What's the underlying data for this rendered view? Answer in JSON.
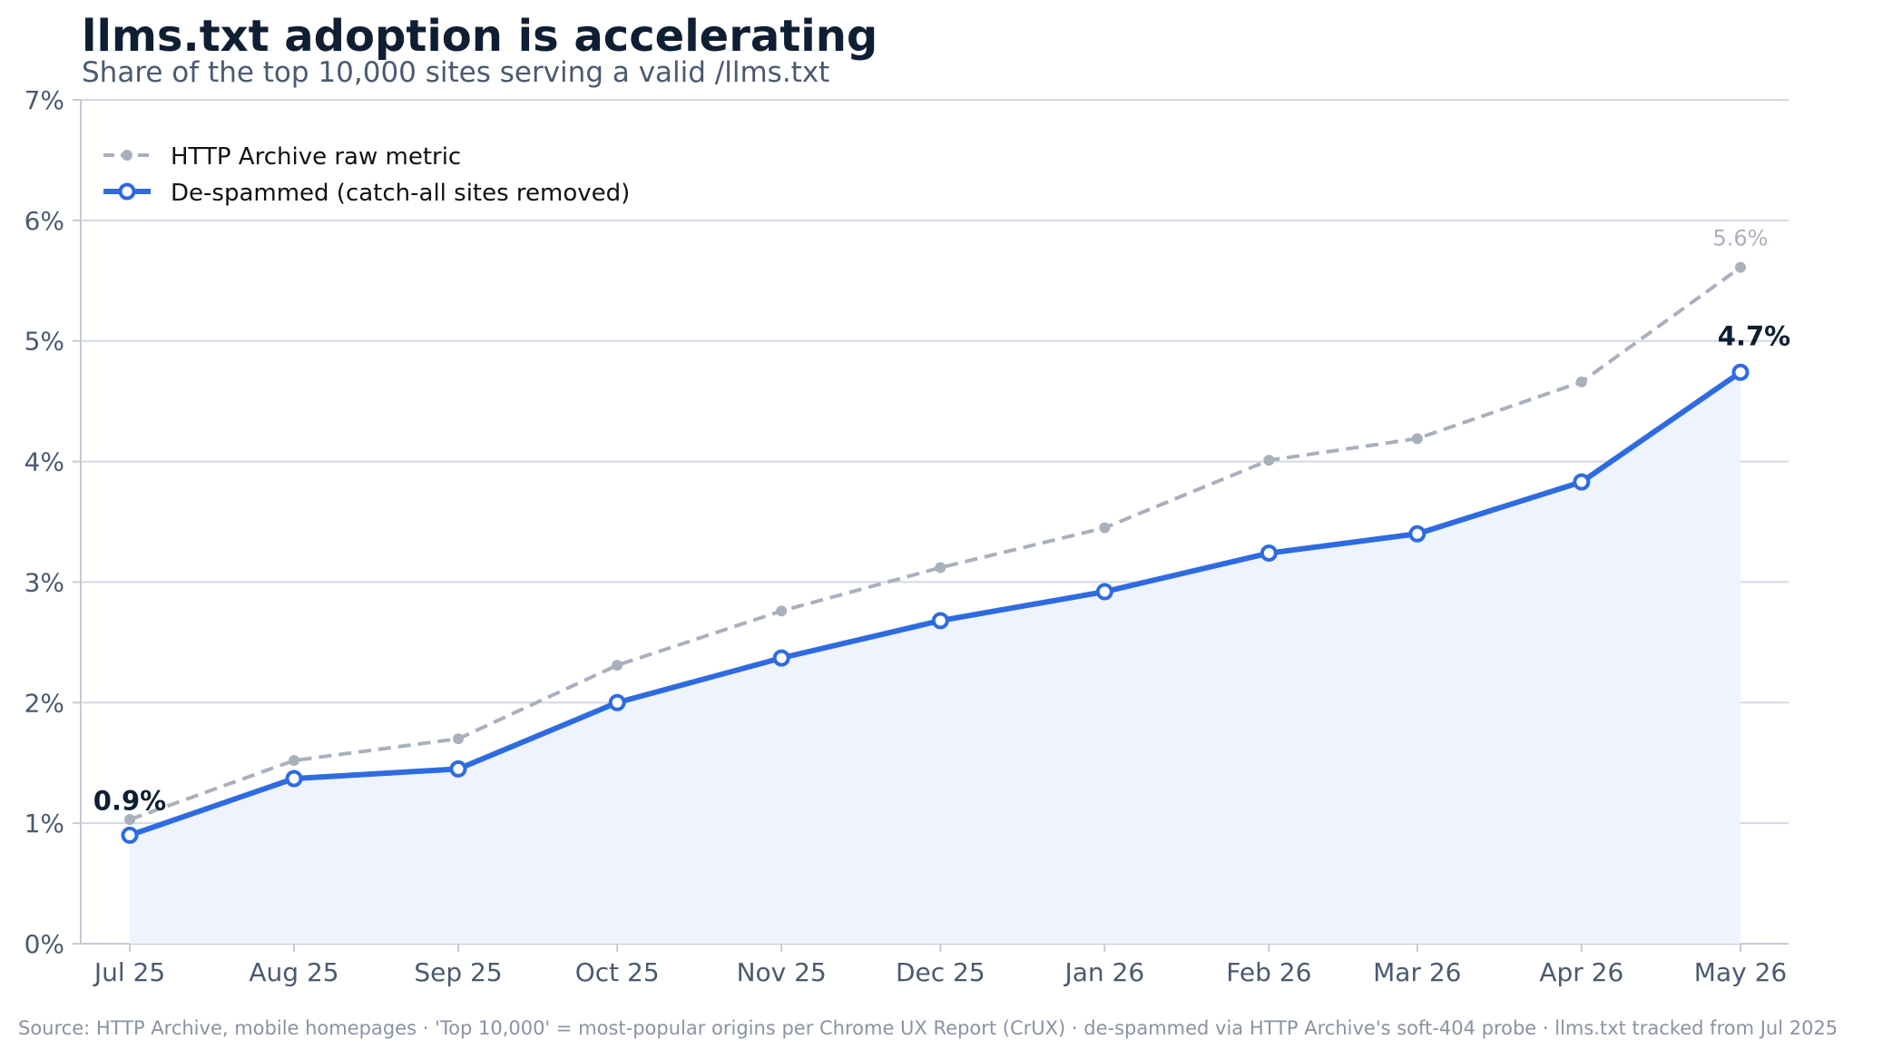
{
  "chart_data": {
    "type": "line",
    "title": "llms.txt adoption is accelerating",
    "subtitle": "Share of the top 10,000 sites serving a valid /llms.txt",
    "categories": [
      "Jul 25",
      "Aug 25",
      "Sep 25",
      "Oct 25",
      "Nov 25",
      "Dec 25",
      "Jan 26",
      "Feb 26",
      "Mar 26",
      "Apr 26",
      "May 26"
    ],
    "x": [
      "2025-07-01",
      "2025-08-01",
      "2025-09-01",
      "2025-10-01",
      "2025-11-01",
      "2025-12-01",
      "2026-01-01",
      "2026-02-01",
      "2026-03-01",
      "2026-04-01",
      "2026-05-01"
    ],
    "ylim": [
      0,
      7
    ],
    "yticks": [
      "0%",
      "1%",
      "2%",
      "3%",
      "4%",
      "5%",
      "6%",
      "7%"
    ],
    "grid": true,
    "legend_position": "top-left",
    "series": [
      {
        "name": "HTTP Archive raw metric",
        "style": "dashed",
        "color": "#a9b0bd",
        "values": [
          1.03,
          1.52,
          1.7,
          2.31,
          2.76,
          3.12,
          3.45,
          4.01,
          4.19,
          4.66,
          5.61
        ],
        "end_label": "5.6%"
      },
      {
        "name": "De-spammed (catch-all sites removed)",
        "style": "solid",
        "color": "#2f6be0",
        "fill": "#eef3fc",
        "values": [
          0.9,
          1.37,
          1.45,
          2.0,
          2.37,
          2.68,
          2.92,
          3.24,
          3.4,
          3.83,
          4.74
        ],
        "start_label": "0.9%",
        "end_label": "4.7%"
      }
    ],
    "source": "Source: HTTP Archive, mobile homepages  ·  'Top 10,000' = most-popular origins per Chrome UX Report (CrUX)  ·  de-spammed via HTTP Archive's soft-404 probe  ·  llms.txt tracked from Jul 2025"
  }
}
